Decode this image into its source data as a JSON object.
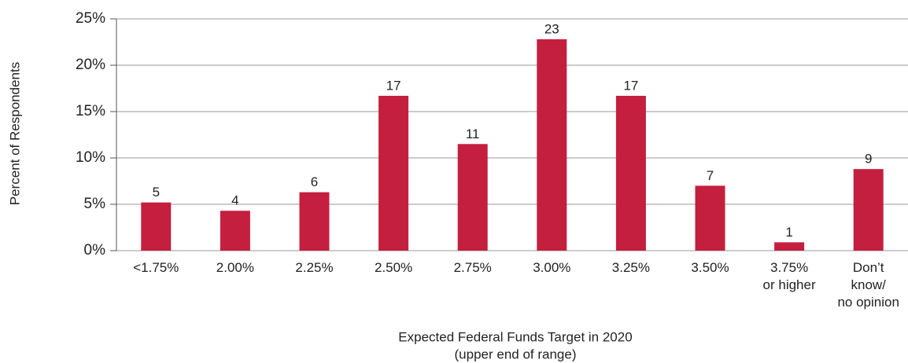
{
  "chart_data": {
    "type": "bar",
    "y_label": "Percent of Respondents",
    "x_label": [
      "Expected Federal Funds Target in 2020",
      "(upper end of range)"
    ],
    "categories": [
      "<1.75%",
      "2.00%",
      "2.25%",
      "2.50%",
      "2.75%",
      "3.00%",
      "3.25%",
      "3.50%",
      "3.75%\nor higher",
      "Don’t\nknow/\nno opinion"
    ],
    "values": [
      5.2,
      4.3,
      6.3,
      16.7,
      11.5,
      22.8,
      16.7,
      7.0,
      0.9,
      8.8
    ],
    "value_labels": [
      "5",
      "4",
      "6",
      "17",
      "11",
      "23",
      "17",
      "7",
      "1",
      "9"
    ],
    "color": "#c41f3e",
    "ylim": [
      0,
      25
    ],
    "yticks": [
      {
        "value": 0,
        "label": "0%"
      },
      {
        "value": 5,
        "label": "5%"
      },
      {
        "value": 10,
        "label": "10%"
      },
      {
        "value": 15,
        "label": "15%"
      },
      {
        "value": 20,
        "label": "20%"
      },
      {
        "value": 25,
        "label": "25%"
      }
    ],
    "grid": true
  }
}
